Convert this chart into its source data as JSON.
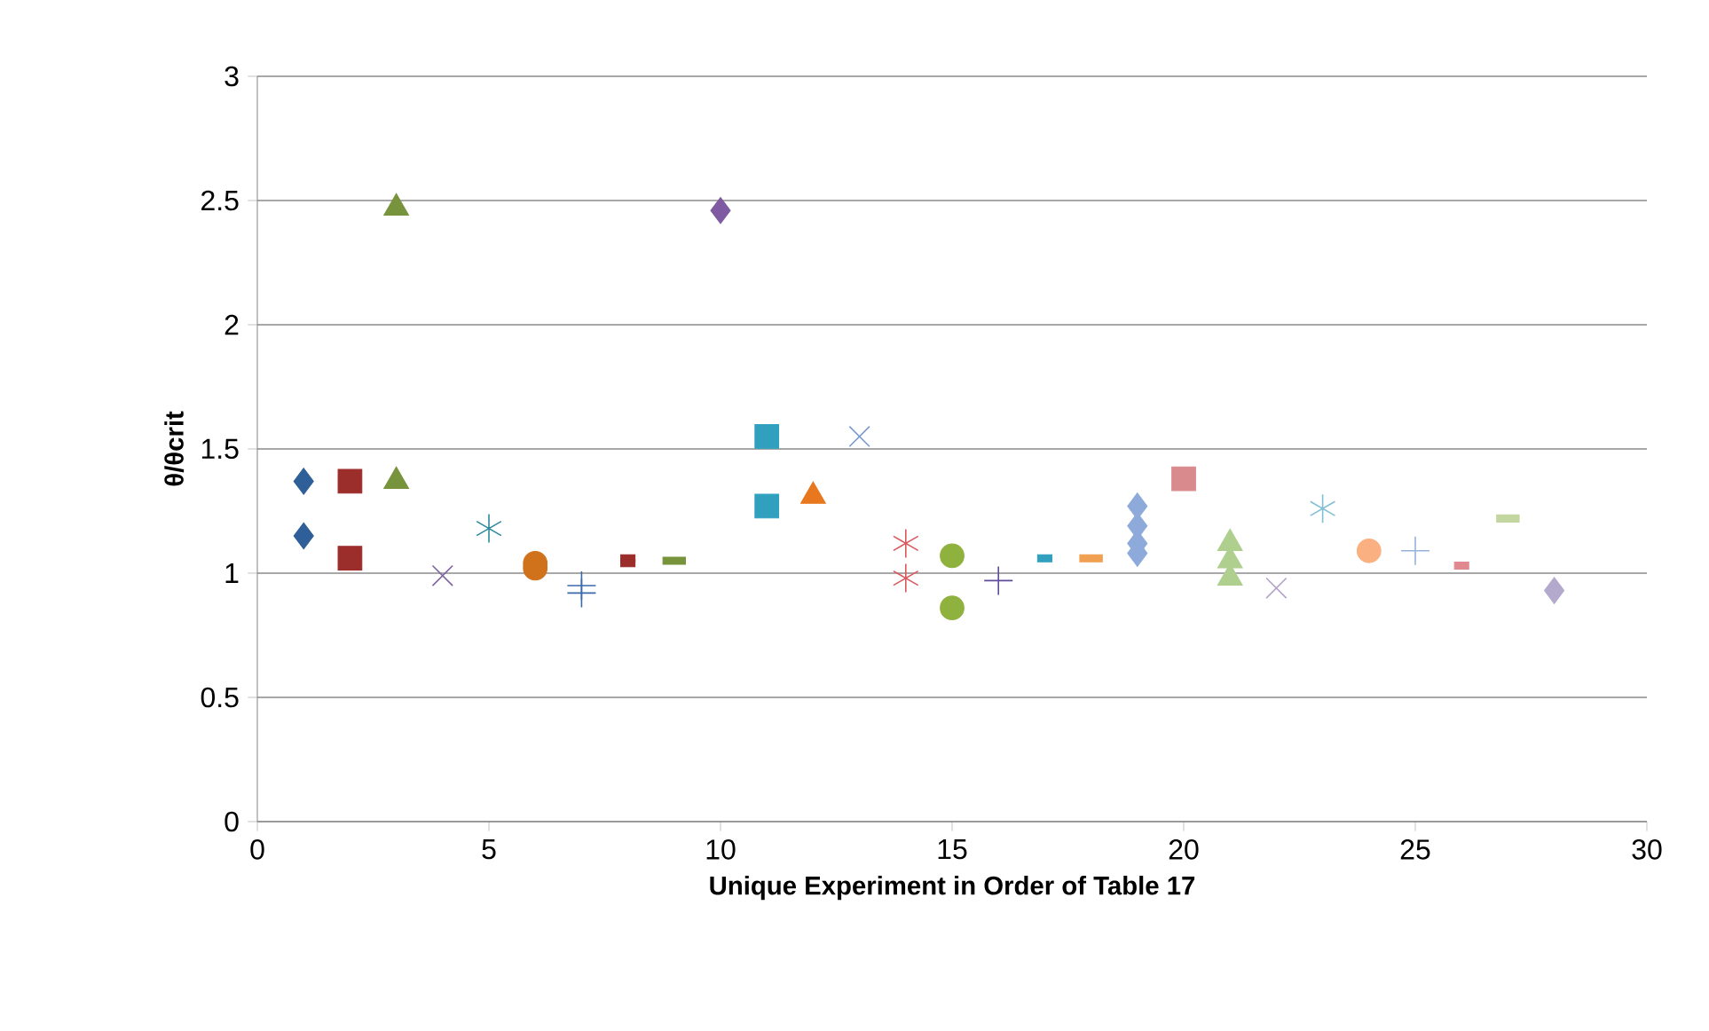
{
  "chart_data": {
    "type": "scatter",
    "xlabel": "Unique Experiment in Order of Table 17",
    "ylabel": "θ/θcrit",
    "xlim": [
      0,
      30
    ],
    "xticks": [
      0,
      5,
      10,
      15,
      20,
      25,
      30
    ],
    "ylim": [
      0,
      3
    ],
    "yticks": [
      0,
      0.5,
      1,
      1.5,
      2,
      2.5,
      3
    ],
    "grid": "y",
    "series": [
      {
        "x": [
          1,
          1
        ],
        "values": [
          1.37,
          1.15
        ],
        "color": "#2f5f98",
        "marker": "diamond"
      },
      {
        "x": [
          2,
          2
        ],
        "values": [
          1.37,
          1.06
        ],
        "color": "#9b2d2b",
        "marker": "square"
      },
      {
        "x": [
          3,
          3
        ],
        "values": [
          2.47,
          1.37
        ],
        "color": "#77933c",
        "marker": "triangle"
      },
      {
        "x": [
          4
        ],
        "values": [
          0.99
        ],
        "color": "#7f64a0",
        "marker": "cross"
      },
      {
        "x": [
          5
        ],
        "values": [
          1.18
        ],
        "color": "#2d8a9e"
      },
      {
        "x": [
          6,
          6
        ],
        "values": [
          1.04,
          1.02
        ],
        "color": "#d0721c",
        "marker": "circle"
      },
      {
        "x": [
          7,
          7
        ],
        "values": [
          0.95,
          0.92
        ],
        "color": "#3a6aa8"
      },
      {
        "x": [
          8,
          8
        ],
        "values": [
          1.06,
          1.04
        ],
        "color": "#9b2d2b"
      },
      {
        "x": [
          9
        ],
        "values": [
          1.05
        ],
        "color": "#77933c"
      },
      {
        "x": [
          10
        ],
        "values": [
          2.46
        ],
        "color": "#7f5aa2",
        "marker": "diamond"
      },
      {
        "x": [
          11,
          11
        ],
        "values": [
          1.55,
          1.27
        ],
        "color": "#31a0bf",
        "marker": "square"
      },
      {
        "x": [
          12
        ],
        "values": [
          1.31
        ],
        "color": "#e8771e",
        "marker": "triangle"
      },
      {
        "x": [
          13
        ],
        "values": [
          1.55
        ],
        "color": "#7b9ad0",
        "marker": "cross"
      },
      {
        "x": [
          14,
          14
        ],
        "values": [
          1.12,
          0.98
        ],
        "color": "#d9585d"
      },
      {
        "x": [
          15,
          15
        ],
        "values": [
          1.07,
          0.86
        ],
        "color": "#8fb23f",
        "marker": "circle"
      },
      {
        "x": [
          16
        ],
        "values": [
          0.97
        ],
        "color": "#604a9b"
      },
      {
        "x": [
          17
        ],
        "values": [
          1.06
        ],
        "color": "#31a0bf"
      },
      {
        "x": [
          18
        ],
        "values": [
          1.06
        ],
        "color": "#f0a050"
      },
      {
        "x": [
          19,
          19,
          19,
          19
        ],
        "values": [
          1.27,
          1.19,
          1.12,
          1.08
        ],
        "color": "#8eaadb",
        "marker": "diamond"
      },
      {
        "x": [
          20
        ],
        "values": [
          1.38
        ],
        "color": "#d98a8c",
        "marker": "square"
      },
      {
        "x": [
          21,
          21,
          21
        ],
        "values": [
          1.12,
          1.05,
          0.98
        ],
        "color": "#aecf8e",
        "marker": "triangle"
      },
      {
        "x": [
          22
        ],
        "values": [
          0.94
        ],
        "color": "#b3a2c7",
        "marker": "cross"
      },
      {
        "x": [
          23
        ],
        "values": [
          1.26
        ],
        "color": "#80bfd6"
      },
      {
        "x": [
          24
        ],
        "values": [
          1.09
        ],
        "color": "#fab080",
        "marker": "circle"
      },
      {
        "x": [
          25
        ],
        "values": [
          1.09
        ],
        "color": "#95b3d7"
      },
      {
        "x": [
          26
        ],
        "values": [
          1.03
        ],
        "color": "#e08a90"
      },
      {
        "x": [
          27
        ],
        "values": [
          1.22
        ],
        "color": "#c4d6a0"
      },
      {
        "x": [
          28
        ],
        "values": [
          0.93
        ],
        "color": "#b3a9cc",
        "marker": "diamond"
      }
    ]
  }
}
